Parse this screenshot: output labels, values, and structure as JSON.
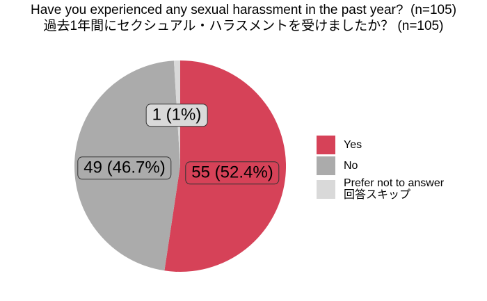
{
  "title": {
    "line1": "Have you experienced any sexual harassment in the past year?  (n=105)",
    "line2": "過去1年間にセクシュアル・ハラスメントを受けましたか？ (n=105)"
  },
  "chart_data": {
    "type": "pie",
    "title": "Have you experienced any sexual harassment in the past year?  (n=105)",
    "subtitle_ja": "過去1年間にセクシュアル・ハラスメントを受けましたか？ (n=105)",
    "n_total": 105,
    "direction": "clockwise",
    "start_angle_deg": 0,
    "legend_position": "right",
    "slices": [
      {
        "label": "Yes",
        "value": 55,
        "percent": 52.4,
        "pct_label": "55 (52.4%)",
        "color": "#d64258"
      },
      {
        "label": "No",
        "value": 49,
        "percent": 46.7,
        "pct_label": "49 (46.7%)",
        "color": "#ababab"
      },
      {
        "label": "Prefer not to answer",
        "label_ja": "回答スキップ",
        "value": 1,
        "percent": 1,
        "pct_label": "1 (1%)",
        "color": "#d9d9d9"
      }
    ]
  }
}
